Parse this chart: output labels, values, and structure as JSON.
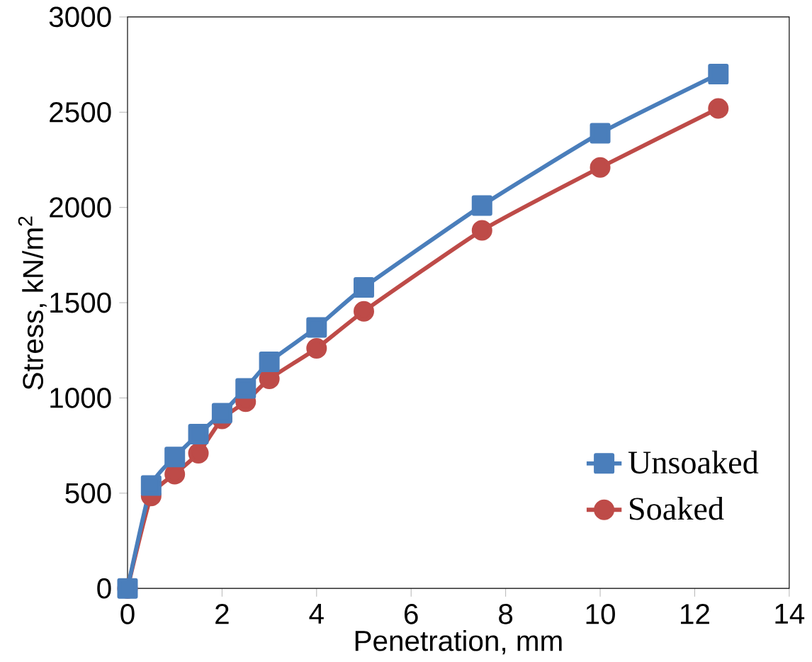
{
  "chart_data": {
    "type": "line",
    "xlabel": "Penetration, mm",
    "ylabel": "Stress, kN/m$^{2}$",
    "xlim": [
      0,
      14
    ],
    "xticks": [
      0,
      2,
      4,
      6,
      8,
      10,
      12,
      14
    ],
    "ylim": [
      0,
      3000
    ],
    "yticks": [
      0,
      500,
      1000,
      1500,
      2000,
      2500,
      3000
    ],
    "x": [
      0,
      0.5,
      1,
      1.5,
      2,
      2.5,
      3,
      4,
      5,
      7.5,
      10,
      12.5
    ],
    "legend": "bottom right",
    "grid": false,
    "series": [
      {
        "name": "Unsoaked",
        "color": "#4a7ebb",
        "marker": "square",
        "values": [
          0,
          540,
          690,
          810,
          920,
          1050,
          1190,
          1370,
          1580,
          2010,
          2390,
          2700
        ]
      },
      {
        "name": "Soaked",
        "color": "#be4b48",
        "marker": "circle",
        "values": [
          0,
          485,
          600,
          710,
          890,
          980,
          1100,
          1260,
          1455,
          1880,
          2210,
          2520
        ]
      }
    ]
  }
}
